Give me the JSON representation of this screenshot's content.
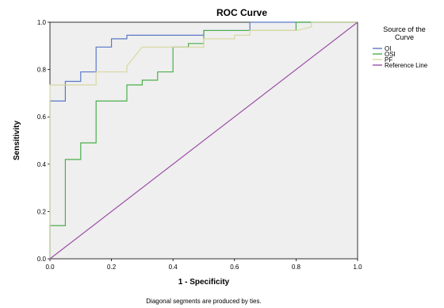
{
  "chart_data": {
    "type": "line",
    "title": "ROC Curve",
    "xlabel": "1 - Specificity",
    "ylabel": "Sensitivity",
    "xlim": [
      0,
      1
    ],
    "ylim": [
      0,
      1
    ],
    "x_ticks": [
      "0.0",
      "0.2",
      "0.4",
      "0.6",
      "0.8",
      "1.0"
    ],
    "y_ticks": [
      "0.0",
      "0.2",
      "0.4",
      "0.6",
      "0.8",
      "1.0"
    ],
    "grid": false,
    "legend": {
      "title_lines": [
        "Source of the",
        "Curve"
      ],
      "placement": "right"
    },
    "footnote": "Diagonal segments are produced by ties.",
    "series": [
      {
        "name": "OI",
        "color": "#5a78c6",
        "points": [
          [
            0,
            0
          ],
          [
            0,
            0.667
          ],
          [
            0.05,
            0.667
          ],
          [
            0.05,
            0.75
          ],
          [
            0.1,
            0.75
          ],
          [
            0.1,
            0.79
          ],
          [
            0.15,
            0.79
          ],
          [
            0.15,
            0.895
          ],
          [
            0.2,
            0.895
          ],
          [
            0.2,
            0.93
          ],
          [
            0.25,
            0.93
          ],
          [
            0.25,
            0.945
          ],
          [
            0.5,
            0.945
          ],
          [
            0.5,
            0.965
          ],
          [
            0.65,
            0.965
          ],
          [
            0.65,
            1.0
          ],
          [
            1,
            1
          ]
        ]
      },
      {
        "name": "OSI",
        "color": "#4cae4c",
        "points": [
          [
            0,
            0
          ],
          [
            0,
            0.14
          ],
          [
            0.05,
            0.14
          ],
          [
            0.05,
            0.42
          ],
          [
            0.1,
            0.42
          ],
          [
            0.1,
            0.49
          ],
          [
            0.15,
            0.49
          ],
          [
            0.15,
            0.667
          ],
          [
            0.25,
            0.667
          ],
          [
            0.25,
            0.735
          ],
          [
            0.3,
            0.735
          ],
          [
            0.3,
            0.755
          ],
          [
            0.35,
            0.755
          ],
          [
            0.35,
            0.79
          ],
          [
            0.4,
            0.79
          ],
          [
            0.4,
            0.895
          ],
          [
            0.45,
            0.895
          ],
          [
            0.45,
            0.91
          ],
          [
            0.5,
            0.91
          ],
          [
            0.5,
            0.965
          ],
          [
            0.8,
            0.965
          ],
          [
            0.8,
            1.0
          ],
          [
            1,
            1
          ]
        ]
      },
      {
        "name": "PF",
        "color": "#d8d8a0",
        "points": [
          [
            0,
            0
          ],
          [
            0,
            0.735
          ],
          [
            0.15,
            0.735
          ],
          [
            0.15,
            0.79
          ],
          [
            0.25,
            0.79
          ],
          [
            0.25,
            0.815
          ],
          [
            0.3,
            0.895
          ],
          [
            0.5,
            0.895
          ],
          [
            0.5,
            0.93
          ],
          [
            0.6,
            0.93
          ],
          [
            0.6,
            0.945
          ],
          [
            0.65,
            0.945
          ],
          [
            0.65,
            0.965
          ],
          [
            0.8,
            0.965
          ],
          [
            0.85,
            0.98
          ],
          [
            0.85,
            1.0
          ],
          [
            1,
            1
          ]
        ]
      },
      {
        "name": "Reference Line",
        "color": "#9b4fa6",
        "points": [
          [
            0,
            0
          ],
          [
            1,
            1
          ]
        ]
      }
    ]
  }
}
